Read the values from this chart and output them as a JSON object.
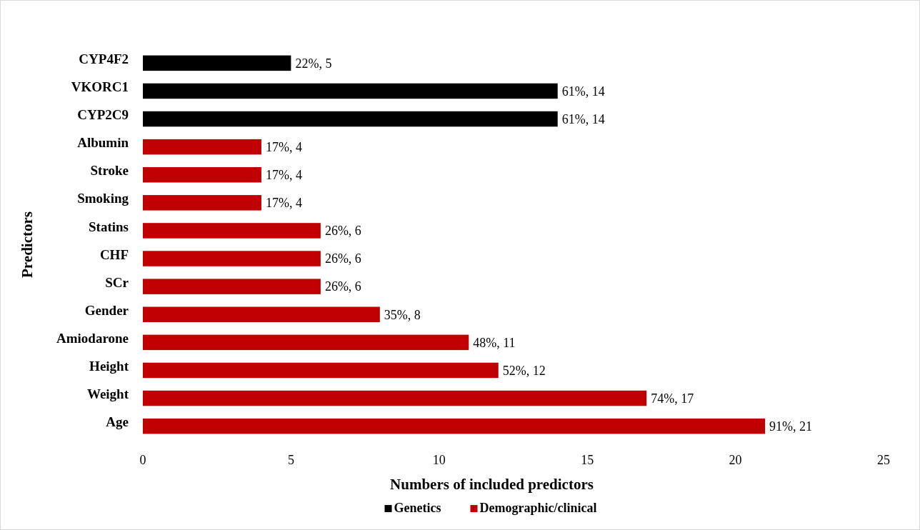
{
  "chart_data": {
    "type": "bar",
    "orientation": "horizontal",
    "xlabel": "Numbers of included predictors",
    "ylabel": "Predictors",
    "categories": [
      "CYP4F2",
      "VKORC1",
      "CYP2C9",
      "Albumin",
      "Stroke",
      "Smoking",
      "Statins",
      "CHF",
      "SCr",
      "Gender",
      "Amiodarone",
      "Height",
      "Weight",
      "Age"
    ],
    "series": [
      {
        "name": "Genetics",
        "color": "#000000",
        "values": [
          5,
          14,
          14,
          null,
          null,
          null,
          null,
          null,
          null,
          null,
          null,
          null,
          null,
          null
        ],
        "value_labels": [
          "22%, 5",
          "61%, 14",
          "61%, 14",
          null,
          null,
          null,
          null,
          null,
          null,
          null,
          null,
          null,
          null,
          null
        ]
      },
      {
        "name": "Demographic/clinical",
        "color": "#c00000",
        "values": [
          null,
          null,
          null,
          4,
          4,
          4,
          6,
          6,
          6,
          8,
          11,
          12,
          17,
          21
        ],
        "value_labels": [
          null,
          null,
          null,
          "17%, 4",
          "17%, 4",
          "17%, 4",
          "26%, 6",
          "26%, 6",
          "26%, 6",
          "35%, 8",
          "48%, 11",
          "52%, 12",
          "74%, 17",
          "91%, 21"
        ]
      }
    ],
    "xlim": [
      0,
      25
    ],
    "xticks": [
      0,
      5,
      10,
      15,
      20,
      25
    ],
    "grid": false,
    "legend": "bottom"
  }
}
